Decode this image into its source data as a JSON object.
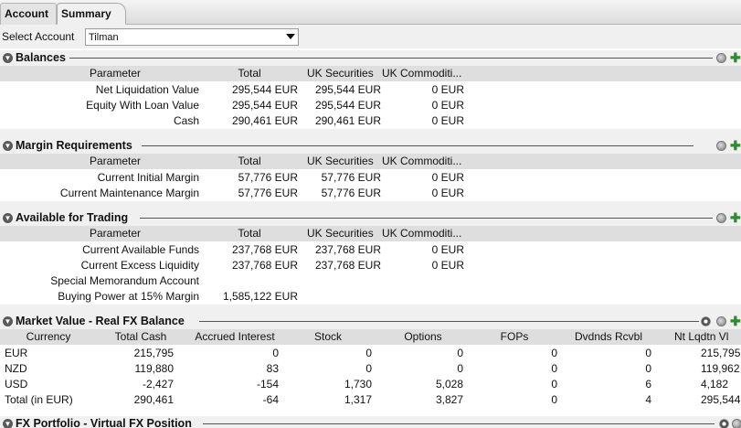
{
  "tabs": [
    {
      "label": "Account",
      "active": false
    },
    {
      "label": "Summary",
      "active": true
    }
  ],
  "account_selector": {
    "label": "Select Account",
    "value": "Tilman"
  },
  "colors": {
    "section_bg": "#f0f0f0",
    "header_bg": "#dedede",
    "plus_icon": "#2f8a2f"
  },
  "balances": {
    "title": "Balances",
    "columns": [
      "Parameter",
      "Total",
      "UK Securities",
      "UK Commoditi..."
    ],
    "rows": [
      [
        "Net Liquidation Value",
        "295,544 EUR",
        "295,544 EUR",
        "0 EUR"
      ],
      [
        "Equity With Loan Value",
        "295,544 EUR",
        "295,544 EUR",
        "0 EUR"
      ],
      [
        "Cash",
        "290,461 EUR",
        "290,461 EUR",
        "0 EUR"
      ]
    ]
  },
  "margin": {
    "title": "Margin Requirements",
    "columns": [
      "Parameter",
      "Total",
      "UK Securities",
      "UK Commoditi..."
    ],
    "rows": [
      [
        "Current Initial Margin",
        "57,776 EUR",
        "57,776 EUR",
        "0 EUR"
      ],
      [
        "Current Maintenance Margin",
        "57,776 EUR",
        "57,776 EUR",
        "0 EUR"
      ]
    ]
  },
  "available": {
    "title": "Available for Trading",
    "columns": [
      "Parameter",
      "Total",
      "UK Securities",
      "UK Commoditi..."
    ],
    "rows": [
      [
        "Current Available Funds",
        "237,768 EUR",
        "237,768 EUR",
        "0 EUR"
      ],
      [
        "Current Excess Liquidity",
        "237,768 EUR",
        "237,768 EUR",
        "0 EUR"
      ],
      [
        "Special Memorandum Account",
        "",
        "",
        ""
      ],
      [
        "Buying Power at 15% Margin",
        "1,585,122 EUR",
        "",
        ""
      ]
    ]
  },
  "market_value": {
    "title": "Market Value - Real FX Balance",
    "columns": [
      "Currency",
      "Total Cash",
      "Accrued Interest",
      "Stock",
      "Options",
      "FOPs",
      "Dvdnds Rcvbl",
      "Nt Lqdtn Vl"
    ],
    "rows": [
      [
        "EUR",
        "215,795",
        "0",
        "0",
        "0",
        "0",
        "0",
        "215,795"
      ],
      [
        "NZD",
        "119,880",
        "83",
        "0",
        "0",
        "0",
        "0",
        "119,962"
      ],
      [
        "USD",
        "-2,427",
        "-154",
        "1,730",
        "5,028",
        "0",
        "6",
        "4,182"
      ],
      [
        "Total (in EUR)",
        "290,461",
        "-64",
        "1,317",
        "3,827",
        "0",
        "4",
        "295,544"
      ]
    ]
  },
  "fx_portfolio": {
    "title": "FX Portfolio - Virtual FX Position"
  }
}
